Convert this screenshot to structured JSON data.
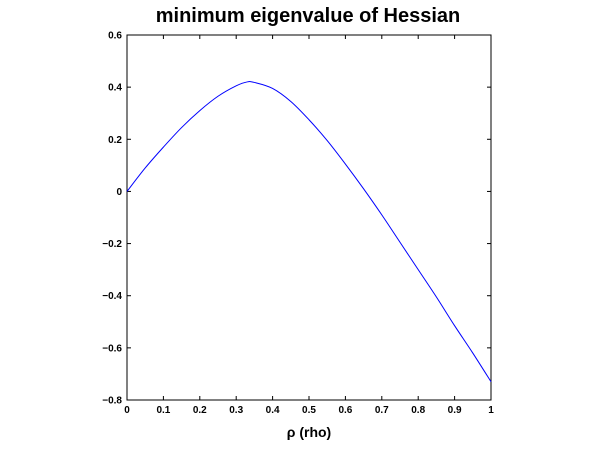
{
  "chart_data": {
    "type": "line",
    "title": "minimum eigenvalue of Hessian",
    "xlabel": "ρ (rho)",
    "ylabel": "",
    "xlim": [
      0,
      1
    ],
    "ylim": [
      -0.8,
      0.6
    ],
    "grid": false,
    "x_ticks": [
      "0",
      "0.1",
      "0.2",
      "0.3",
      "0.4",
      "0.5",
      "0.6",
      "0.7",
      "0.8",
      "0.9",
      "1"
    ],
    "y_ticks": [
      "0.6",
      "0.4",
      "0.2",
      "0",
      "−0.2",
      "−0.4",
      "−0.6",
      "−0.8"
    ],
    "series": [
      {
        "color": "#0000ff",
        "x": [
          0,
          0.05,
          0.1,
          0.15,
          0.2,
          0.25,
          0.3,
          0.33,
          0.35,
          0.4,
          0.45,
          0.5,
          0.55,
          0.6,
          0.65,
          0.7,
          0.75,
          0.8,
          0.85,
          0.9,
          0.95,
          1.0
        ],
        "y": [
          0.0,
          0.09,
          0.17,
          0.245,
          0.31,
          0.365,
          0.405,
          0.42,
          0.418,
          0.395,
          0.345,
          0.275,
          0.195,
          0.105,
          0.01,
          -0.09,
          -0.195,
          -0.3,
          -0.405,
          -0.515,
          -0.62,
          -0.73
        ]
      }
    ]
  }
}
